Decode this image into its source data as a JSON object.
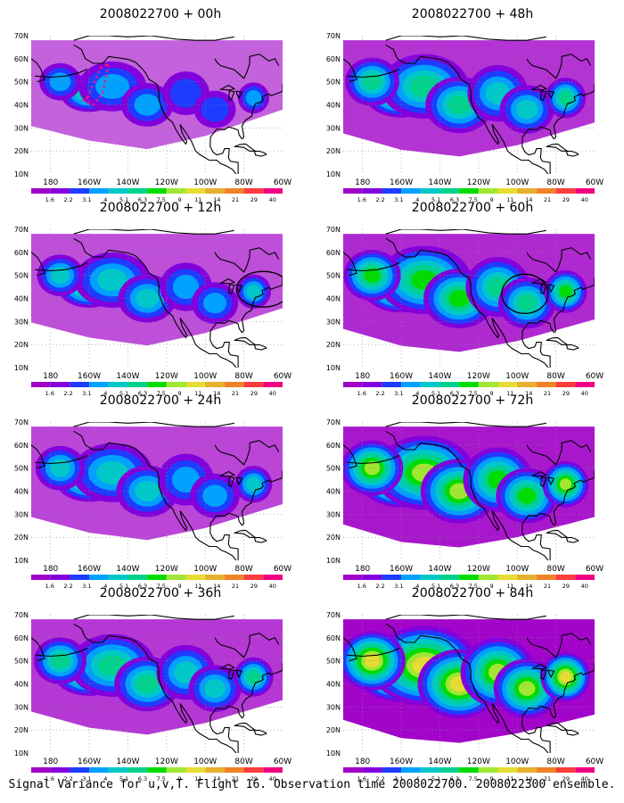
{
  "map": {
    "lat_labels": [
      "70N",
      "60N",
      "50N",
      "40N",
      "30N",
      "20N",
      "10N"
    ],
    "lon_labels": [
      "180",
      "160W",
      "140W",
      "120W",
      "100W",
      "80W",
      "60W"
    ],
    "colorbar": {
      "levels": [
        "1.6",
        "2.2",
        "3.1",
        "4",
        "5.1",
        "6.3",
        "7.5",
        "9",
        "11",
        "14",
        "21",
        "29",
        "40"
      ],
      "colors": [
        "#a000c8",
        "#8200dc",
        "#1e3cff",
        "#00a0ff",
        "#00c8c8",
        "#00d28c",
        "#00dc00",
        "#a0e632",
        "#e6dc32",
        "#e6af2d",
        "#f08228",
        "#fa3c3c",
        "#f00082"
      ]
    },
    "panels": [
      {
        "id": "p00",
        "title": "2008022700 + 00h",
        "col": 0,
        "row": 0,
        "intensity": 0.15,
        "annotation": "dashed-ellipse"
      },
      {
        "id": "p48",
        "title": "2008022700 + 48h",
        "col": 1,
        "row": 0,
        "intensity": 0.55,
        "annotation": "none"
      },
      {
        "id": "p12",
        "title": "2008022700 + 12h",
        "col": 0,
        "row": 1,
        "intensity": 0.3,
        "annotation": "circle-east"
      },
      {
        "id": "p60",
        "title": "2008022700 + 60h",
        "col": 1,
        "row": 1,
        "intensity": 0.65,
        "annotation": "circle-central"
      },
      {
        "id": "p24",
        "title": "2008022700 + 24h",
        "col": 0,
        "row": 2,
        "intensity": 0.4,
        "annotation": "none"
      },
      {
        "id": "p72",
        "title": "2008022700 + 72h",
        "col": 1,
        "row": 2,
        "intensity": 0.8,
        "annotation": "none"
      },
      {
        "id": "p36",
        "title": "2008022700 + 36h",
        "col": 0,
        "row": 3,
        "intensity": 0.5,
        "annotation": "none"
      },
      {
        "id": "p84",
        "title": "2008022700 + 84h",
        "col": 1,
        "row": 3,
        "intensity": 0.95,
        "annotation": "none"
      }
    ]
  },
  "footer": "Signal Variance for u,v,T. Flight 16. Observation time 2008022700. 2008022300 ensemble."
}
